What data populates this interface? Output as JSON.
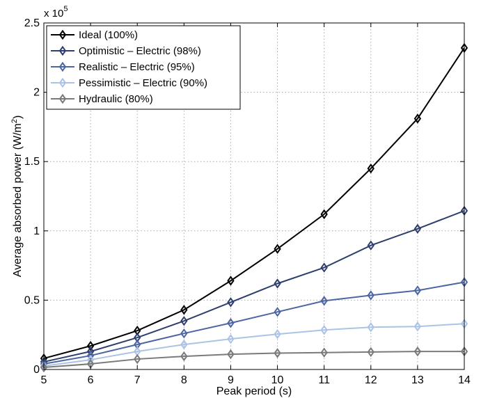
{
  "chart_data": {
    "type": "line",
    "xlabel": "Peak period (s)",
    "ylabel": "Average absorbed power (W/m",
    "ylabel_sup": "2",
    "ylabel_close": ")",
    "y_multiplier": "x 10",
    "y_multiplier_exp": "5",
    "xlim": [
      5,
      14
    ],
    "ylim": [
      0,
      250000
    ],
    "x_ticks": [
      5,
      6,
      7,
      8,
      9,
      10,
      11,
      12,
      13,
      14
    ],
    "y_ticks": [
      0,
      50000,
      100000,
      150000,
      200000,
      250000
    ],
    "y_tick_labels": [
      "0",
      "0.5",
      "1",
      "1.5",
      "2",
      "2.5"
    ],
    "grid": true,
    "legend_position": "top-left",
    "x": [
      5,
      6,
      7,
      8,
      9,
      10,
      11,
      12,
      13,
      14
    ],
    "series": [
      {
        "name": "Ideal (100%)",
        "color": "#000000",
        "values": [
          8000,
          17000,
          28000,
          43000,
          64000,
          87000,
          112000,
          145000,
          181000,
          232000
        ]
      },
      {
        "name": "Optimistic – Electric (98%)",
        "color": "#2e3f6f",
        "values": [
          5500,
          13000,
          23000,
          35000,
          48500,
          62000,
          73500,
          89500,
          101500,
          114500
        ]
      },
      {
        "name": "Realistic – Electric (95%)",
        "color": "#4d66a3",
        "values": [
          4000,
          10000,
          18000,
          26000,
          33500,
          41500,
          49500,
          53500,
          57000,
          63000
        ]
      },
      {
        "name": "Pessimistic – Electric (90%)",
        "color": "#aac3e6",
        "values": [
          2500,
          7000,
          13000,
          18000,
          22000,
          25500,
          28500,
          30500,
          31000,
          33000
        ]
      },
      {
        "name": "Hydraulic (80%)",
        "color": "#7a7a7a",
        "values": [
          1500,
          4000,
          7500,
          9500,
          11000,
          11800,
          12200,
          12600,
          13000,
          13000
        ]
      }
    ]
  }
}
